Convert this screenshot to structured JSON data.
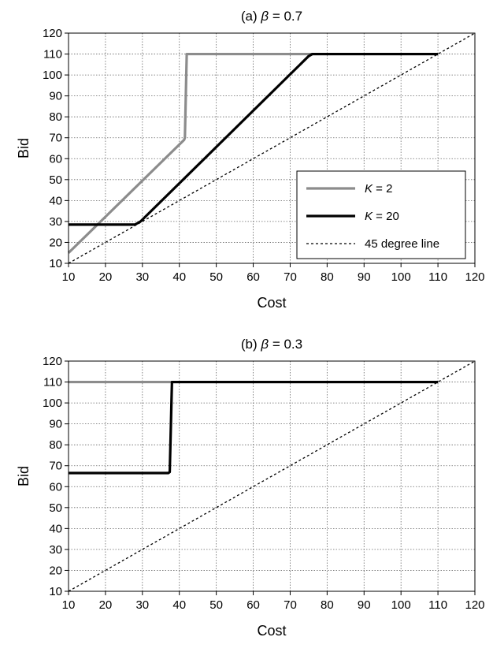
{
  "chart_data": [
    {
      "type": "line",
      "title_prefix": "(a) ",
      "title_symbol": "β",
      "title_suffix": " = 0.7",
      "xlabel": "Cost",
      "ylabel": "Bid",
      "xlim": [
        10,
        120
      ],
      "ylim": [
        10,
        120
      ],
      "xticks": [
        "10",
        "20",
        "30",
        "40",
        "50",
        "60",
        "70",
        "80",
        "90",
        "100",
        "110",
        "120"
      ],
      "yticks": [
        "10",
        "20",
        "30",
        "40",
        "50",
        "60",
        "70",
        "80",
        "90",
        "100",
        "110",
        "120"
      ],
      "grid": true,
      "legend": {
        "placement": "center-right",
        "entries": [
          {
            "prefix": "K",
            "suffix": " = 2",
            "color": "#8c8c8c",
            "style": "solid"
          },
          {
            "prefix": "K",
            "suffix": " = 20",
            "color": "#000000",
            "style": "solid"
          },
          {
            "prefix": "",
            "suffix": "45 degree line",
            "color": "#000000",
            "style": "dotted"
          }
        ]
      },
      "series": [
        {
          "name": "K = 2",
          "color": "#8c8c8c",
          "style": "solid",
          "x": [
            10,
            41.3,
            41.5,
            42,
            42.5,
            110
          ],
          "y": [
            15,
            69,
            70,
            110,
            110,
            110
          ]
        },
        {
          "name": "K = 20",
          "color": "#000000",
          "style": "solid",
          "x": [
            10,
            28,
            29.5,
            75,
            76,
            110
          ],
          "y": [
            28.5,
            28.5,
            30,
            109,
            110,
            110
          ]
        },
        {
          "name": "45 degree line",
          "color": "#000000",
          "style": "dotted",
          "x": [
            10,
            120
          ],
          "y": [
            10,
            120
          ]
        }
      ]
    },
    {
      "type": "line",
      "title_prefix": "(b) ",
      "title_symbol": "β",
      "title_suffix": " = 0.3",
      "xlabel": "Cost",
      "ylabel": "Bid",
      "xlim": [
        10,
        120
      ],
      "ylim": [
        10,
        120
      ],
      "xticks": [
        "10",
        "20",
        "30",
        "40",
        "50",
        "60",
        "70",
        "80",
        "90",
        "100",
        "110",
        "120"
      ],
      "yticks": [
        "10",
        "20",
        "30",
        "40",
        "50",
        "60",
        "70",
        "80",
        "90",
        "100",
        "110",
        "120"
      ],
      "grid": true,
      "series": [
        {
          "name": "K = 2",
          "color": "#8c8c8c",
          "style": "solid",
          "x": [
            10,
            110
          ],
          "y": [
            110,
            110
          ]
        },
        {
          "name": "K = 20",
          "color": "#000000",
          "style": "solid",
          "x": [
            10,
            37,
            37.4,
            38,
            38.5,
            110
          ],
          "y": [
            66.5,
            66.5,
            67,
            110,
            110,
            110
          ]
        },
        {
          "name": "45 degree line",
          "color": "#000000",
          "style": "dotted",
          "x": [
            10,
            120
          ],
          "y": [
            10,
            120
          ]
        }
      ]
    }
  ]
}
